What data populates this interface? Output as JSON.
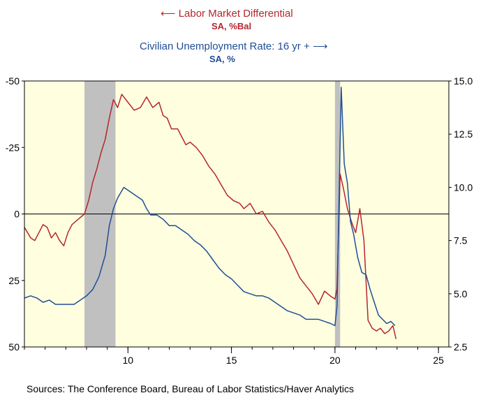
{
  "legend": {
    "red_title": "Labor Market Differential",
    "red_arrow": "⟵",
    "red_sub": "SA, %Bal",
    "blue_title": "Civilian Unemployment Rate: 16 yr +",
    "blue_arrow": "⟶",
    "blue_sub": "SA, %"
  },
  "source": "Sources:  The Conference Board, Bureau of Labor Statistics/Haver Analytics",
  "colors": {
    "background": "#ffffe0",
    "recession": "#c0c0c0",
    "red": "#b5262c",
    "blue": "#1f4e96",
    "zero_line": "#000000"
  },
  "chart_data": {
    "type": "line",
    "x_axis": {
      "range": [
        2005,
        2025.5
      ],
      "ticks": [
        2010,
        2015,
        2020,
        2025
      ],
      "tick_labels": [
        "10",
        "15",
        "20",
        "25"
      ]
    },
    "left_axis": {
      "range": [
        -50,
        50
      ],
      "inverted": true,
      "ticks": [
        -50,
        -25,
        0,
        25,
        50
      ],
      "tick_labels": [
        "-50",
        "-25",
        "0",
        "25",
        "50"
      ]
    },
    "right_axis": {
      "range": [
        2.5,
        15.0
      ],
      "ticks": [
        2.5,
        5.0,
        7.5,
        10.0,
        12.5,
        15.0
      ],
      "tick_labels": [
        "2.5",
        "5.0",
        "7.5",
        "10.0",
        "12.5",
        "15.0"
      ]
    },
    "recessions": [
      [
        2007.9,
        2009.4
      ],
      [
        2020.0,
        2020.25
      ]
    ],
    "series": [
      {
        "axis": "left",
        "points": [
          [
            2005.0,
            5
          ],
          [
            2005.3,
            9
          ],
          [
            2005.5,
            10
          ],
          [
            2005.7,
            7
          ],
          [
            2005.9,
            4
          ],
          [
            2006.1,
            5
          ],
          [
            2006.3,
            9
          ],
          [
            2006.5,
            7
          ],
          [
            2006.7,
            10
          ],
          [
            2006.9,
            12
          ],
          [
            2007.1,
            7
          ],
          [
            2007.3,
            4
          ],
          [
            2007.6,
            2
          ],
          [
            2007.9,
            0
          ],
          [
            2008.1,
            -5
          ],
          [
            2008.3,
            -12
          ],
          [
            2008.5,
            -17
          ],
          [
            2008.7,
            -23
          ],
          [
            2008.9,
            -28
          ],
          [
            2009.1,
            -36
          ],
          [
            2009.3,
            -43
          ],
          [
            2009.5,
            -40
          ],
          [
            2009.7,
            -45
          ],
          [
            2010.0,
            -42
          ],
          [
            2010.3,
            -39
          ],
          [
            2010.6,
            -40
          ],
          [
            2010.9,
            -44
          ],
          [
            2011.2,
            -40
          ],
          [
            2011.5,
            -42
          ],
          [
            2011.7,
            -37
          ],
          [
            2011.9,
            -36
          ],
          [
            2012.1,
            -32
          ],
          [
            2012.4,
            -32
          ],
          [
            2012.6,
            -29
          ],
          [
            2012.8,
            -26
          ],
          [
            2013.0,
            -27
          ],
          [
            2013.3,
            -25
          ],
          [
            2013.6,
            -22
          ],
          [
            2013.9,
            -18
          ],
          [
            2014.2,
            -15
          ],
          [
            2014.5,
            -11
          ],
          [
            2014.8,
            -7
          ],
          [
            2015.1,
            -5
          ],
          [
            2015.4,
            -4
          ],
          [
            2015.6,
            -2
          ],
          [
            2015.9,
            -4
          ],
          [
            2016.2,
            0
          ],
          [
            2016.5,
            -1
          ],
          [
            2016.8,
            3
          ],
          [
            2017.1,
            6
          ],
          [
            2017.4,
            10
          ],
          [
            2017.7,
            14
          ],
          [
            2018.0,
            19
          ],
          [
            2018.3,
            24
          ],
          [
            2018.6,
            27
          ],
          [
            2018.9,
            30
          ],
          [
            2019.2,
            34
          ],
          [
            2019.5,
            29
          ],
          [
            2019.8,
            31
          ],
          [
            2020.0,
            32
          ],
          [
            2020.1,
            28
          ],
          [
            2020.25,
            -15
          ],
          [
            2020.4,
            -10
          ],
          [
            2020.6,
            -2
          ],
          [
            2020.8,
            3
          ],
          [
            2021.0,
            7
          ],
          [
            2021.2,
            -2
          ],
          [
            2021.4,
            10
          ],
          [
            2021.6,
            40
          ],
          [
            2021.8,
            43
          ],
          [
            2022.0,
            44
          ],
          [
            2022.2,
            43
          ],
          [
            2022.4,
            45
          ],
          [
            2022.6,
            44
          ],
          [
            2022.8,
            42
          ],
          [
            2022.95,
            47
          ]
        ]
      },
      {
        "axis": "right",
        "points": [
          [
            2005.0,
            4.8
          ],
          [
            2005.3,
            4.9
          ],
          [
            2005.6,
            4.8
          ],
          [
            2005.9,
            4.6
          ],
          [
            2006.2,
            4.7
          ],
          [
            2006.5,
            4.5
          ],
          [
            2006.8,
            4.5
          ],
          [
            2007.1,
            4.5
          ],
          [
            2007.4,
            4.5
          ],
          [
            2007.7,
            4.7
          ],
          [
            2008.0,
            4.9
          ],
          [
            2008.3,
            5.2
          ],
          [
            2008.6,
            5.8
          ],
          [
            2008.9,
            6.8
          ],
          [
            2009.1,
            8.2
          ],
          [
            2009.3,
            9.0
          ],
          [
            2009.5,
            9.5
          ],
          [
            2009.8,
            10.0
          ],
          [
            2010.1,
            9.8
          ],
          [
            2010.4,
            9.6
          ],
          [
            2010.7,
            9.4
          ],
          [
            2010.9,
            9.0
          ],
          [
            2011.1,
            8.7
          ],
          [
            2011.4,
            8.7
          ],
          [
            2011.7,
            8.5
          ],
          [
            2012.0,
            8.2
          ],
          [
            2012.3,
            8.2
          ],
          [
            2012.6,
            8.0
          ],
          [
            2012.9,
            7.8
          ],
          [
            2013.2,
            7.5
          ],
          [
            2013.5,
            7.3
          ],
          [
            2013.8,
            7.0
          ],
          [
            2014.1,
            6.6
          ],
          [
            2014.4,
            6.2
          ],
          [
            2014.7,
            5.9
          ],
          [
            2015.0,
            5.7
          ],
          [
            2015.3,
            5.4
          ],
          [
            2015.6,
            5.1
          ],
          [
            2015.9,
            5.0
          ],
          [
            2016.2,
            4.9
          ],
          [
            2016.5,
            4.9
          ],
          [
            2016.8,
            4.8
          ],
          [
            2017.1,
            4.6
          ],
          [
            2017.4,
            4.4
          ],
          [
            2017.7,
            4.2
          ],
          [
            2018.0,
            4.1
          ],
          [
            2018.3,
            4.0
          ],
          [
            2018.6,
            3.8
          ],
          [
            2018.9,
            3.8
          ],
          [
            2019.2,
            3.8
          ],
          [
            2019.5,
            3.7
          ],
          [
            2019.8,
            3.6
          ],
          [
            2020.0,
            3.5
          ],
          [
            2020.1,
            4.4
          ],
          [
            2020.3,
            14.7
          ],
          [
            2020.45,
            11.1
          ],
          [
            2020.6,
            10.2
          ],
          [
            2020.75,
            8.4
          ],
          [
            2020.9,
            7.8
          ],
          [
            2021.1,
            6.7
          ],
          [
            2021.3,
            6.0
          ],
          [
            2021.5,
            5.9
          ],
          [
            2021.7,
            5.2
          ],
          [
            2021.9,
            4.6
          ],
          [
            2022.1,
            4.0
          ],
          [
            2022.3,
            3.8
          ],
          [
            2022.5,
            3.6
          ],
          [
            2022.7,
            3.7
          ],
          [
            2022.9,
            3.5
          ]
        ]
      }
    ]
  }
}
